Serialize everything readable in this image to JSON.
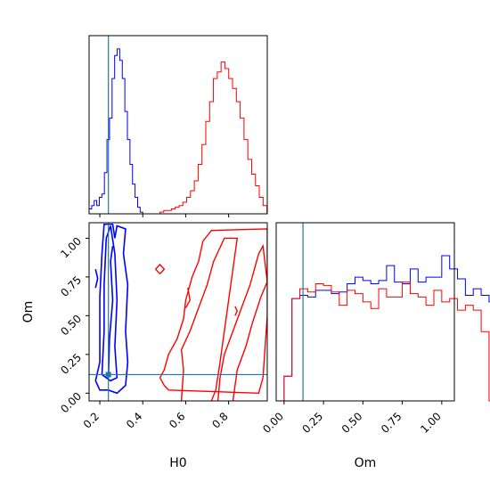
{
  "chart_data": {
    "type": "corner",
    "parameters": [
      "H0",
      "Om"
    ],
    "truth": {
      "H0": 0.24,
      "Om": 0.12
    },
    "colors": {
      "blue_series": "#0000ff",
      "red_series": "#ff0000",
      "truth_line": "#1f77b4",
      "axes": "#000000"
    },
    "h0_hist": {
      "xlim": [
        0.15,
        0.98
      ],
      "ymax": 1.0,
      "bin_edges_start": 0.15,
      "bin_width": 0.0119,
      "blue_counts": [
        0.03,
        0.05,
        0.08,
        0.05,
        0.1,
        0.12,
        0.25,
        0.45,
        0.58,
        0.82,
        0.96,
        1.0,
        0.93,
        0.82,
        0.62,
        0.45,
        0.3,
        0.18,
        0.1,
        0.04,
        0.01
      ],
      "red_start": 0.48,
      "red_counts": [
        0.01,
        0.02,
        0.02,
        0.03,
        0.04,
        0.05,
        0.07,
        0.1,
        0.14,
        0.2,
        0.3,
        0.42,
        0.56,
        0.68,
        0.82,
        0.86,
        0.92,
        0.88,
        0.82,
        0.76,
        0.68,
        0.58,
        0.45,
        0.33,
        0.24,
        0.17,
        0.1,
        0.05
      ],
      "red_bin_width": 0.0178
    },
    "om_hist": {
      "xlim": [
        -0.05,
        1.08
      ],
      "bin_width": 0.05,
      "bins_start": -0.05,
      "blue_counts": [
        0.0,
        0.15,
        0.62,
        0.64,
        0.63,
        0.67,
        0.67,
        0.65,
        0.66,
        0.71,
        0.75,
        0.73,
        0.71,
        0.73,
        0.82,
        0.72,
        0.71,
        0.8,
        0.72,
        0.75,
        0.75,
        0.88,
        0.8,
        0.74,
        0.64,
        0.68,
        0.64,
        0.6,
        0.0
      ],
      "red_counts": [
        0.0,
        0.15,
        0.62,
        0.68,
        0.66,
        0.71,
        0.7,
        0.66,
        0.58,
        0.67,
        0.65,
        0.6,
        0.56,
        0.68,
        0.63,
        0.63,
        0.72,
        0.65,
        0.63,
        0.58,
        0.67,
        0.6,
        0.62,
        0.55,
        0.58,
        0.55,
        0.42,
        0.0,
        0.0
      ]
    },
    "joint": {
      "xlim": [
        0.15,
        0.98
      ],
      "ylim": [
        -0.05,
        1.1
      ],
      "blue_contours": [
        [
          [
            0.18,
            0.08
          ],
          [
            0.2,
            0.2
          ],
          [
            0.2,
            0.4
          ],
          [
            0.2,
            0.62
          ],
          [
            0.21,
            0.9
          ],
          [
            0.22,
            1.09
          ],
          [
            0.26,
            1.09
          ],
          [
            0.27,
            1.0
          ],
          [
            0.28,
            1.08
          ],
          [
            0.32,
            1.06
          ],
          [
            0.31,
            0.9
          ],
          [
            0.33,
            0.7
          ],
          [
            0.32,
            0.4
          ],
          [
            0.33,
            0.2
          ],
          [
            0.32,
            0.05
          ],
          [
            0.28,
            0.0
          ],
          [
            0.24,
            0.02
          ],
          [
            0.2,
            0.02
          ],
          [
            0.18,
            0.08
          ]
        ],
        [
          [
            0.21,
            0.12
          ],
          [
            0.22,
            0.4
          ],
          [
            0.22,
            0.7
          ],
          [
            0.23,
            1.0
          ],
          [
            0.25,
            1.08
          ],
          [
            0.27,
            0.9
          ],
          [
            0.28,
            0.6
          ],
          [
            0.27,
            0.3
          ],
          [
            0.28,
            0.1
          ],
          [
            0.25,
            0.08
          ],
          [
            0.21,
            0.12
          ]
        ],
        [
          [
            0.24,
            0.1
          ],
          [
            0.245,
            0.35
          ],
          [
            0.26,
            0.6
          ],
          [
            0.25,
            0.85
          ],
          [
            0.26,
            0.95
          ]
        ],
        [
          [
            0.18,
            0.68
          ],
          [
            0.19,
            0.74
          ],
          [
            0.18,
            0.8
          ]
        ]
      ],
      "red_contours": [
        [
          [
            0.48,
            0.1
          ],
          [
            0.5,
            0.15
          ],
          [
            0.52,
            0.25
          ],
          [
            0.56,
            0.35
          ],
          [
            0.59,
            0.48
          ],
          [
            0.6,
            0.6
          ],
          [
            0.63,
            0.75
          ],
          [
            0.66,
            0.85
          ],
          [
            0.68,
            0.98
          ],
          [
            0.72,
            1.05
          ],
          [
            0.98,
            1.06
          ],
          [
            0.98,
            0.5
          ],
          [
            0.96,
            0.1
          ],
          [
            0.94,
            0.0
          ],
          [
            0.52,
            0.02
          ],
          [
            0.5,
            0.05
          ],
          [
            0.48,
            0.1
          ]
        ],
        [
          [
            0.58,
            -0.05
          ],
          [
            0.59,
            0.15
          ],
          [
            0.58,
            0.28
          ],
          [
            0.62,
            0.4
          ],
          [
            0.66,
            0.55
          ],
          [
            0.7,
            0.7
          ],
          [
            0.73,
            0.85
          ],
          [
            0.78,
            1.0
          ],
          [
            0.84,
            1.0
          ],
          [
            0.82,
            0.8
          ],
          [
            0.8,
            0.6
          ],
          [
            0.78,
            0.4
          ],
          [
            0.76,
            0.2
          ],
          [
            0.74,
            0.02
          ],
          [
            0.72,
            -0.05
          ]
        ],
        [
          [
            0.75,
            -0.05
          ],
          [
            0.76,
            0.1
          ],
          [
            0.78,
            0.25
          ],
          [
            0.82,
            0.4
          ],
          [
            0.86,
            0.55
          ],
          [
            0.9,
            0.7
          ],
          [
            0.94,
            0.9
          ],
          [
            0.96,
            0.95
          ],
          [
            0.98,
            0.72
          ]
        ],
        [
          [
            0.82,
            -0.05
          ],
          [
            0.84,
            0.15
          ],
          [
            0.88,
            0.3
          ],
          [
            0.91,
            0.45
          ],
          [
            0.95,
            0.62
          ],
          [
            0.98,
            0.72
          ]
        ],
        [
          [
            0.6,
            0.55
          ],
          [
            0.62,
            0.6
          ],
          [
            0.61,
            0.68
          ]
        ],
        [
          [
            0.48,
            0.77
          ],
          [
            0.5,
            0.8
          ],
          [
            0.48,
            0.83
          ],
          [
            0.46,
            0.8
          ],
          [
            0.48,
            0.77
          ]
        ],
        [
          [
            0.83,
            0.5
          ],
          [
            0.84,
            0.53
          ],
          [
            0.83,
            0.56
          ]
        ]
      ]
    },
    "axes": {
      "h0_ticks": [
        0.2,
        0.4,
        0.6,
        0.8
      ],
      "h0_tick_labels": [
        "0.2",
        "0.4",
        "0.6",
        "0.8"
      ],
      "om_ticks": [
        0.0,
        0.25,
        0.5,
        0.75,
        1.0
      ],
      "om_tick_labels": [
        "0.00",
        "0.25",
        "0.50",
        "0.75",
        "1.00"
      ],
      "xlabel_left": "H0",
      "xlabel_right": "Om",
      "ylabel_joint": "Om"
    }
  }
}
